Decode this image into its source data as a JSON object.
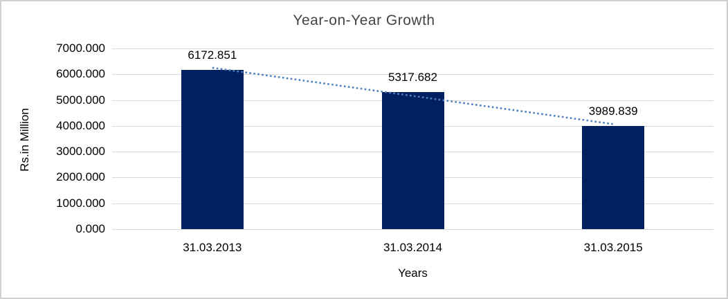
{
  "chart_title": "Year-on-Year Growth",
  "chart_data": {
    "type": "bar",
    "title": "Year-on-Year Growth",
    "categories": [
      "31.03.2013",
      "31.03.2014",
      "31.03.2015"
    ],
    "values": [
      6172.851,
      5317.682,
      3989.839
    ],
    "data_labels": [
      "6172.851",
      "5317.682",
      "3989.839"
    ],
    "xlabel": "Years",
    "ylabel": "Rs.in Million",
    "ylim": [
      0,
      7000
    ],
    "ytick_step": 1000,
    "ytick_labels": [
      "0.000",
      "1000.000",
      "2000.000",
      "3000.000",
      "4000.000",
      "5000.000",
      "6000.000",
      "7000.000"
    ],
    "grid": true,
    "legend": "none",
    "trendline": {
      "type": "linear",
      "style": "dotted",
      "fitted_values": [
        6251.631,
        5160.124,
        4068.617
      ]
    },
    "colors": {
      "bar": "#002060",
      "trendline": "#4f81bd",
      "gridline": "#d9d9d9",
      "title_text": "#444444",
      "axis_text": "#000000",
      "border": "#cfcfcf",
      "background": "#ffffff"
    }
  }
}
